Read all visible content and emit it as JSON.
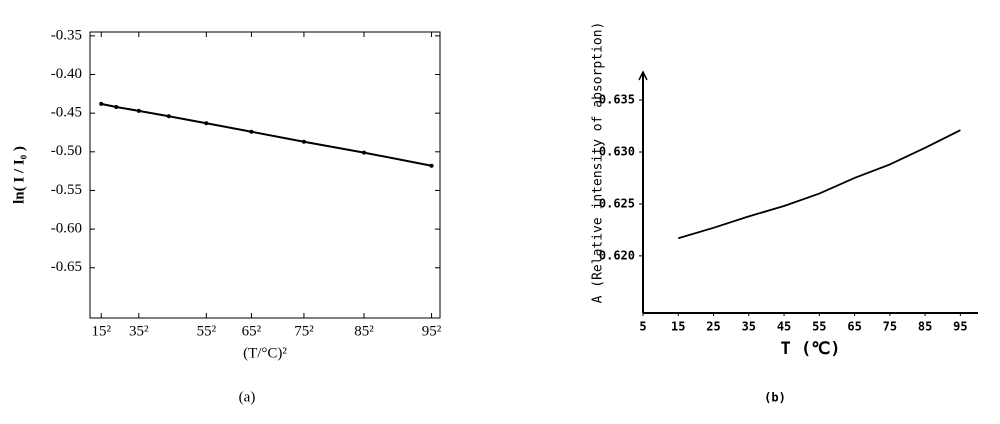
{
  "chart_data": [
    {
      "type": "line",
      "caption": "(a)",
      "xlabel": "(T/°C)²",
      "ylabel": "ln( I / I₀ )",
      "x": [
        225,
        625,
        1225,
        2025,
        3025,
        4225,
        5625,
        7225,
        9025
      ],
      "values": [
        -0.438,
        -0.442,
        -0.447,
        -0.454,
        -0.463,
        -0.474,
        -0.487,
        -0.501,
        -0.518
      ],
      "color": "#000000",
      "markers": true,
      "box": true,
      "xlim": [
        -75,
        9250
      ],
      "ylim": [
        -0.715,
        -0.345
      ],
      "xticks": [
        {
          "value": 225,
          "label": "15²"
        },
        {
          "value": 1225,
          "label": "35²"
        },
        {
          "value": 3025,
          "label": "55²"
        },
        {
          "value": 4225,
          "label": "65²"
        },
        {
          "value": 5625,
          "label": "75²"
        },
        {
          "value": 7225,
          "label": "85²"
        },
        {
          "value": 9025,
          "label": "95²"
        }
      ],
      "yticks": [
        -0.35,
        {
          "value": -0.4,
          "label": "-0.40"
        },
        -0.45,
        {
          "value": -0.5,
          "label": "-0.50"
        },
        -0.55,
        {
          "value": -0.6,
          "label": "-0.60"
        },
        -0.65
      ]
    },
    {
      "type": "line",
      "caption": "(b)",
      "xlabel": "T (℃)",
      "ylabel": "A (Relative intensity of absorption)",
      "x": [
        15,
        25,
        35,
        45,
        55,
        65,
        75,
        85,
        95
      ],
      "values": [
        0.6217,
        0.6227,
        0.6238,
        0.6248,
        0.626,
        0.6275,
        0.6288,
        0.6304,
        0.6321
      ],
      "color": "#000000",
      "markers": false,
      "box": false,
      "xlim": [
        5,
        100
      ],
      "ylim": [
        0.6145,
        0.6377
      ],
      "xticks": [
        5,
        15,
        25,
        35,
        45,
        55,
        65,
        75,
        85,
        95
      ],
      "yticks": [
        {
          "value": 0.62,
          "label": "0.620"
        },
        0.625,
        {
          "value": 0.63,
          "label": "0.630"
        },
        0.635
      ]
    }
  ]
}
